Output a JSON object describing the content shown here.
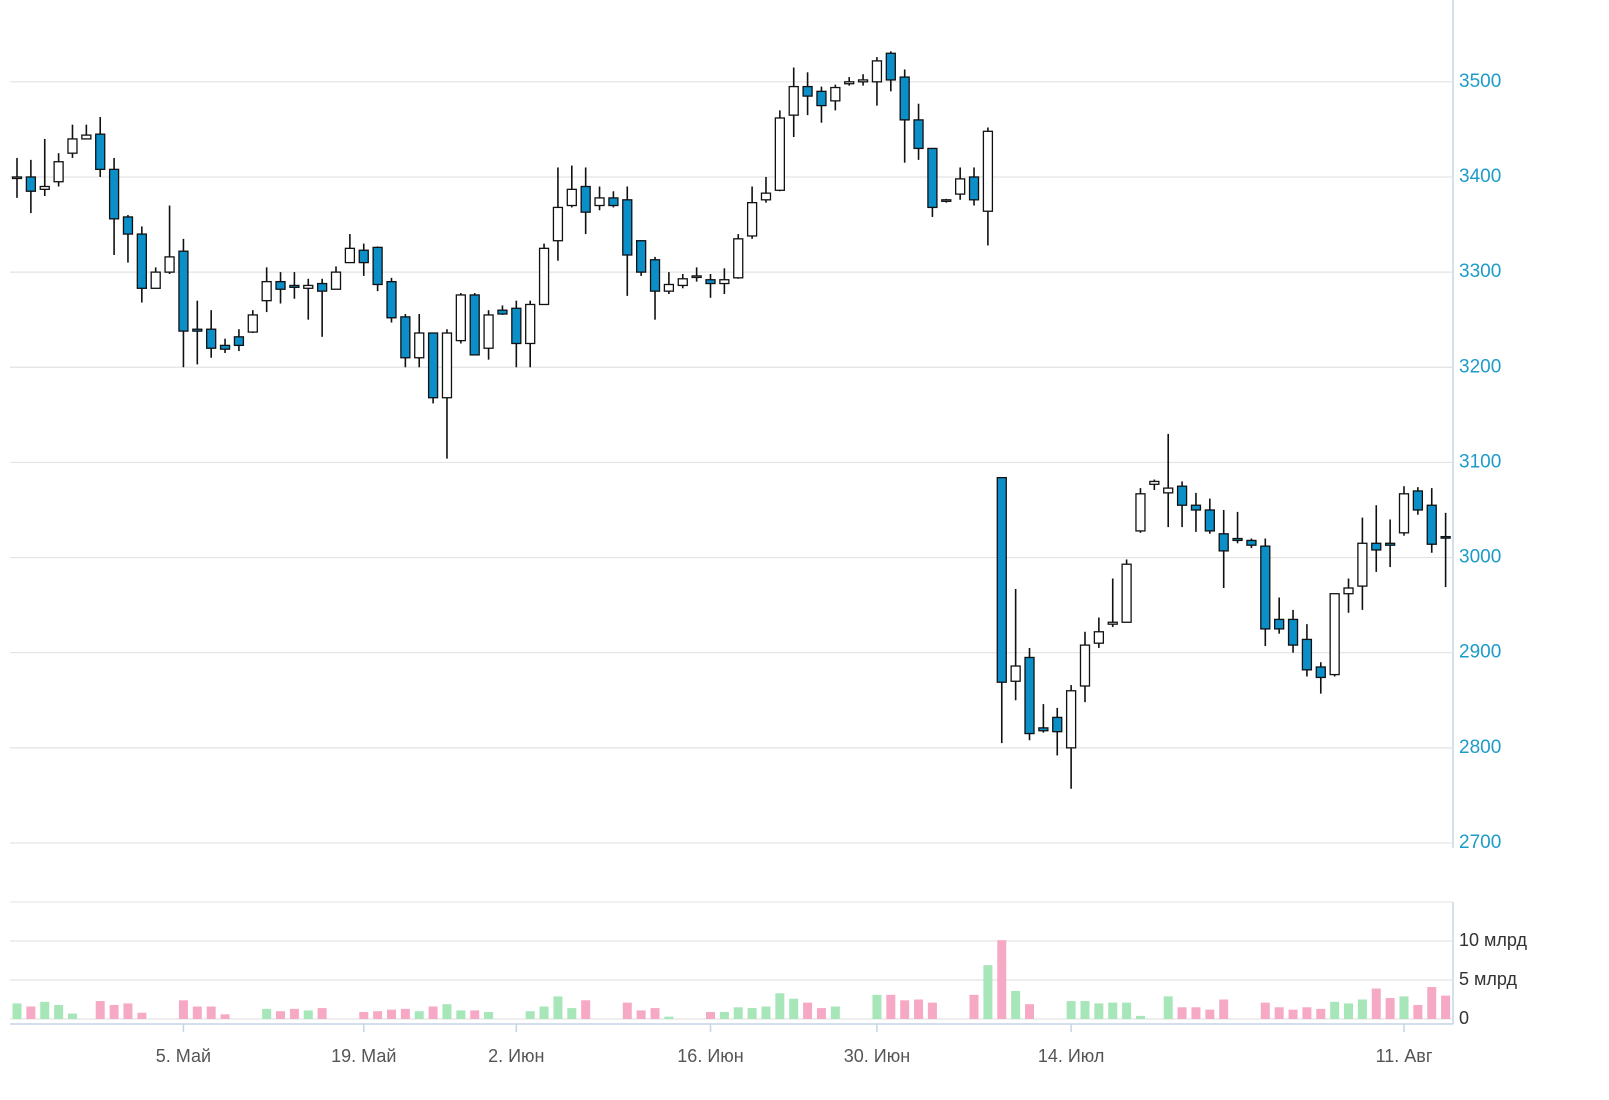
{
  "chart_data": {
    "type": "candlestick",
    "categories": [
      null,
      null,
      null,
      null,
      null,
      null,
      null,
      null,
      null,
      null,
      null,
      null,
      "5. Май",
      null,
      null,
      null,
      null,
      null,
      null,
      null,
      null,
      null,
      null,
      null,
      null,
      "19. Май",
      null,
      null,
      null,
      null,
      null,
      null,
      null,
      null,
      null,
      null,
      "2. Июн",
      null,
      null,
      null,
      null,
      null,
      null,
      null,
      null,
      null,
      null,
      null,
      null,
      null,
      "16. Июн",
      null,
      null,
      null,
      null,
      null,
      null,
      null,
      null,
      null,
      null,
      null,
      "30. Июн",
      null,
      null,
      null,
      null,
      null,
      null,
      null,
      null,
      null,
      null,
      null,
      null,
      null,
      "14. Июл",
      null,
      null,
      null,
      null,
      null,
      null,
      null,
      null,
      null,
      null,
      null,
      null,
      null,
      null,
      null,
      null,
      null,
      null,
      null,
      null,
      null,
      null,
      null,
      "11. Авг",
      null,
      null,
      null
    ],
    "open": [
      3399,
      3400,
      3387,
      3395,
      3425,
      3440,
      3445,
      3408,
      3358,
      3340,
      3283,
      3300,
      3322,
      3240,
      3240,
      3223,
      3232,
      3237,
      3270,
      3290,
      3286,
      3283,
      3288,
      3282,
      3310,
      3323,
      3326,
      3290,
      3253,
      3210,
      3236,
      3168,
      3228,
      3276,
      3220,
      3260,
      3262,
      3225,
      3266,
      3333,
      3370,
      3390,
      3370,
      3378,
      3376,
      3333,
      3313,
      3280,
      3286,
      3295,
      3292,
      3288,
      3294,
      3338,
      3376,
      3386,
      3465,
      3495,
      3490,
      3480,
      3498,
      3500,
      3500,
      3530,
      3505,
      3460,
      3430,
      3375,
      3382,
      3400,
      3364,
      3084,
      2870,
      2895,
      2821,
      2832,
      2800,
      2865,
      2910,
      2930,
      2932,
      3028,
      3077,
      3068,
      3075,
      3055,
      3050,
      3025,
      3020,
      3018,
      3012,
      2935,
      2935,
      2914,
      2885,
      2877,
      2962,
      2970,
      3015,
      3015,
      3026,
      3070,
      3055,
      3022
    ],
    "high": [
      3420,
      3418,
      3440,
      3425,
      3455,
      3455,
      3463,
      3420,
      3360,
      3348,
      3305,
      3370,
      3335,
      3270,
      3260,
      3230,
      3240,
      3260,
      3305,
      3300,
      3300,
      3293,
      3293,
      3306,
      3340,
      3330,
      3327,
      3294,
      3256,
      3256,
      3236,
      3240,
      3278,
      3278,
      3260,
      3265,
      3270,
      3270,
      3330,
      3410,
      3412,
      3410,
      3390,
      3385,
      3390,
      3333,
      3316,
      3300,
      3298,
      3305,
      3298,
      3304,
      3340,
      3390,
      3400,
      3470,
      3515,
      3510,
      3495,
      3497,
      3505,
      3508,
      3526,
      3532,
      3513,
      3477,
      3430,
      3377,
      3410,
      3410,
      3452,
      3084,
      2967,
      2905,
      2846,
      2842,
      2866,
      2922,
      2937,
      2978,
      2998,
      3073,
      3082,
      3130,
      3080,
      3068,
      3062,
      3050,
      3048,
      3020,
      3020,
      2958,
      2945,
      2930,
      2890,
      2962,
      2978,
      3042,
      3055,
      3040,
      3075,
      3074,
      3073,
      3047
    ],
    "low": [
      3378,
      3362,
      3380,
      3390,
      3420,
      3440,
      3400,
      3318,
      3310,
      3268,
      3283,
      3298,
      3200,
      3203,
      3210,
      3215,
      3217,
      3236,
      3258,
      3267,
      3272,
      3250,
      3232,
      3282,
      3310,
      3296,
      3280,
      3247,
      3200,
      3200,
      3162,
      3104,
      3225,
      3213,
      3208,
      3255,
      3200,
      3200,
      3266,
      3312,
      3368,
      3340,
      3365,
      3368,
      3275,
      3296,
      3250,
      3277,
      3283,
      3290,
      3273,
      3277,
      3293,
      3335,
      3373,
      3385,
      3442,
      3465,
      3457,
      3470,
      3496,
      3496,
      3475,
      3490,
      3415,
      3418,
      3358,
      3373,
      3376,
      3370,
      3328,
      2805,
      2850,
      2808,
      2816,
      2792,
      2757,
      2848,
      2905,
      2927,
      2932,
      3026,
      3071,
      3032,
      3032,
      3027,
      3025,
      2968,
      3015,
      3010,
      2907,
      2920,
      2900,
      2875,
      2857,
      2875,
      2942,
      2945,
      2985,
      2990,
      3023,
      3045,
      3005,
      2969
    ],
    "close": [
      3400,
      3385,
      3390,
      3416,
      3440,
      3444,
      3408,
      3356,
      3340,
      3283,
      3300,
      3316,
      3238,
      3238,
      3220,
      3219,
      3223,
      3255,
      3290,
      3282,
      3284,
      3286,
      3280,
      3300,
      3325,
      3310,
      3287,
      3252,
      3210,
      3236,
      3168,
      3236,
      3276,
      3213,
      3255,
      3256,
      3225,
      3266,
      3325,
      3368,
      3387,
      3363,
      3378,
      3370,
      3318,
      3300,
      3280,
      3287,
      3293,
      3296,
      3288,
      3292,
      3335,
      3373,
      3383,
      3462,
      3495,
      3485,
      3475,
      3494,
      3500,
      3502,
      3522,
      3502,
      3460,
      3430,
      3368,
      3376,
      3398,
      3376,
      3448,
      2869,
      2886,
      2815,
      2818,
      2817,
      2860,
      2908,
      2922,
      2932,
      2993,
      3067,
      3080,
      3073,
      3055,
      3050,
      3028,
      3007,
      3018,
      3013,
      2925,
      2925,
      2908,
      2882,
      2874,
      2962,
      2968,
      3015,
      3008,
      3013,
      3067,
      3050,
      3014,
      3021
    ],
    "up_color": "#ffffff",
    "down_color": "#0a8fc8",
    "ylim": [
      2700,
      3586
    ],
    "yticks": [
      2700,
      2800,
      2900,
      3000,
      3100,
      3200,
      3300,
      3400,
      3500
    ],
    "grid": true,
    "volume": {
      "type": "bar",
      "values": [
        2.0,
        1.6,
        2.2,
        1.8,
        0.7,
        null,
        2.3,
        1.8,
        2.0,
        0.8,
        null,
        null,
        2.4,
        1.6,
        1.6,
        0.6,
        null,
        null,
        1.3,
        1.0,
        1.3,
        1.1,
        1.4,
        null,
        null,
        0.9,
        1.0,
        1.2,
        1.3,
        1.0,
        1.6,
        1.9,
        1.1,
        1.1,
        0.9,
        null,
        null,
        1.0,
        1.6,
        2.9,
        1.4,
        2.4,
        null,
        null,
        2.1,
        1.1,
        1.4,
        0.3,
        null,
        null,
        0.9,
        0.9,
        1.5,
        1.4,
        1.6,
        3.3,
        2.6,
        2.1,
        1.4,
        1.6,
        null,
        null,
        3.1,
        3.1,
        2.4,
        2.5,
        2.1,
        null,
        null,
        3.1,
        6.9,
        10.1,
        3.6,
        1.9,
        null,
        null,
        2.3,
        2.3,
        2.0,
        2.1,
        2.1,
        0.4,
        null,
        2.9,
        1.5,
        1.5,
        1.2,
        2.5,
        null,
        null,
        2.1,
        1.5,
        1.2,
        1.5,
        1.3,
        2.2,
        2.0,
        2.5,
        3.9,
        2.7,
        2.9,
        1.8,
        4.1,
        3.0
      ],
      "up_color": "#a6e6b9",
      "down_color": "#f6a9c5",
      "ylim": [
        0,
        15
      ],
      "yticks": [
        0,
        {
          "value": 5,
          "label": "5 млрд"
        },
        {
          "value": 10,
          "label": "10 млрд"
        }
      ],
      "grid": true
    }
  }
}
